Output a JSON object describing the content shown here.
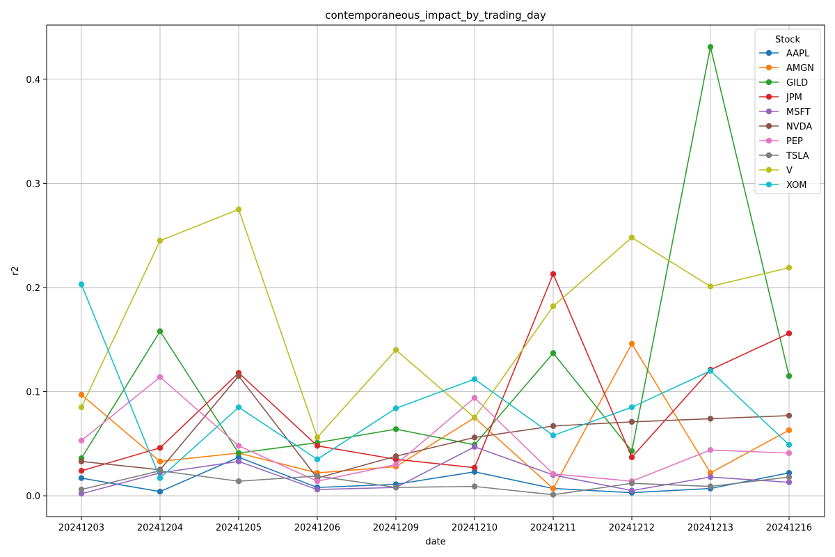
{
  "chart_data": {
    "type": "line",
    "title": "contemporaneous_impact_by_trading_day",
    "xlabel": "date",
    "ylabel": "r2",
    "categories": [
      "20241203",
      "20241204",
      "20241205",
      "20241206",
      "20241209",
      "20241210",
      "20241211",
      "20241212",
      "20241213",
      "20241216"
    ],
    "ylim": [
      -0.02,
      0.452
    ],
    "yticks": [
      0.0,
      0.1,
      0.2,
      0.3,
      0.4
    ],
    "ytick_labels": [
      "0.0",
      "0.1",
      "0.2",
      "0.3",
      "0.4"
    ],
    "grid": true,
    "legend": {
      "title": "Stock",
      "placement": "top-right"
    },
    "series": [
      {
        "name": "AAPL",
        "color": "#1f77b4",
        "values": [
          0.017,
          0.004,
          0.037,
          0.008,
          0.011,
          0.023,
          0.007,
          0.003,
          0.007,
          0.022
        ]
      },
      {
        "name": "AMGN",
        "color": "#ff7f0e",
        "values": [
          0.097,
          0.033,
          0.041,
          0.022,
          0.028,
          0.075,
          0.007,
          0.146,
          0.022,
          0.063
        ]
      },
      {
        "name": "GILD",
        "color": "#2ca02c",
        "values": [
          0.036,
          0.158,
          0.041,
          0.051,
          0.064,
          0.049,
          0.137,
          0.043,
          0.431,
          0.115
        ]
      },
      {
        "name": "JPM",
        "color": "#d62728",
        "values": [
          0.024,
          0.046,
          0.118,
          0.048,
          0.035,
          0.027,
          0.213,
          0.037,
          0.121,
          0.156
        ]
      },
      {
        "name": "MSFT",
        "color": "#9467bd",
        "values": [
          0.002,
          0.022,
          0.033,
          0.006,
          0.008,
          0.047,
          0.02,
          0.005,
          0.018,
          0.013
        ]
      },
      {
        "name": "NVDA",
        "color": "#8c564b",
        "values": [
          0.033,
          0.025,
          0.115,
          0.017,
          0.038,
          0.056,
          0.067,
          0.071,
          0.074,
          0.077
        ]
      },
      {
        "name": "PEP",
        "color": "#e377c2",
        "values": [
          0.053,
          0.114,
          0.048,
          0.014,
          0.03,
          0.094,
          0.021,
          0.014,
          0.044,
          0.041
        ]
      },
      {
        "name": "TSLA",
        "color": "#7f7f7f",
        "values": [
          0.006,
          0.024,
          0.014,
          0.019,
          0.008,
          0.009,
          0.001,
          0.012,
          0.009,
          0.018
        ]
      },
      {
        "name": "V",
        "color": "#bcbd22",
        "values": [
          0.085,
          0.245,
          0.275,
          0.056,
          0.14,
          0.075,
          0.182,
          0.248,
          0.201,
          0.219
        ]
      },
      {
        "name": "XOM",
        "color": "#17becf",
        "values": [
          0.203,
          0.017,
          0.085,
          0.035,
          0.084,
          0.112,
          0.058,
          0.085,
          0.12,
          0.049
        ]
      }
    ]
  }
}
